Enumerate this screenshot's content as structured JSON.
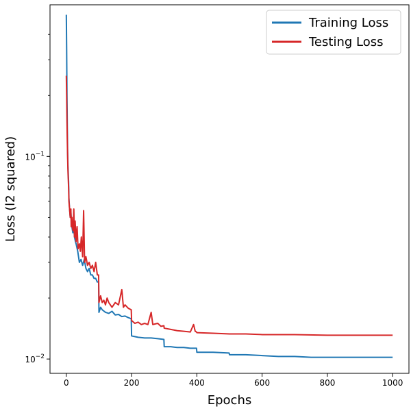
{
  "chart_data": {
    "type": "line",
    "xlabel": "Epochs",
    "ylabel": "Loss (l2 squared)",
    "yscale": "log",
    "xlim": [
      -50,
      1050
    ],
    "ylim": [
      0.0085,
      0.56
    ],
    "x_ticks": [
      0,
      200,
      400,
      600,
      800,
      1000
    ],
    "y_major_ticks": [
      {
        "value": 0.01,
        "label_base": "10",
        "label_exp": "−2"
      },
      {
        "value": 0.1,
        "label_base": "10",
        "label_exp": "−1"
      }
    ],
    "y_minor_ticks": [
      0.02,
      0.03,
      0.04,
      0.05,
      0.06,
      0.07,
      0.08,
      0.09,
      0.2,
      0.3,
      0.4
    ],
    "grid": false,
    "legend_position": "upper-right",
    "series": [
      {
        "name": "Training Loss",
        "color": "#1f77b4",
        "points": [
          [
            0,
            0.5
          ],
          [
            1,
            0.34
          ],
          [
            2,
            0.2
          ],
          [
            3,
            0.14
          ],
          [
            4,
            0.105
          ],
          [
            5,
            0.09
          ],
          [
            7,
            0.075
          ],
          [
            8,
            0.062
          ],
          [
            10,
            0.055
          ],
          [
            12,
            0.05
          ],
          [
            14,
            0.053
          ],
          [
            16,
            0.047
          ],
          [
            18,
            0.044
          ],
          [
            20,
            0.042
          ],
          [
            22,
            0.046
          ],
          [
            25,
            0.04
          ],
          [
            28,
            0.038
          ],
          [
            30,
            0.037
          ],
          [
            35,
            0.034
          ],
          [
            40,
            0.03
          ],
          [
            45,
            0.031
          ],
          [
            50,
            0.029
          ],
          [
            55,
            0.031
          ],
          [
            60,
            0.028
          ],
          [
            65,
            0.027
          ],
          [
            70,
            0.028
          ],
          [
            75,
            0.026
          ],
          [
            80,
            0.026
          ],
          [
            85,
            0.025
          ],
          [
            90,
            0.025
          ],
          [
            95,
            0.024
          ],
          [
            99,
            0.024
          ],
          [
            100,
            0.017
          ],
          [
            105,
            0.018
          ],
          [
            110,
            0.0175
          ],
          [
            120,
            0.017
          ],
          [
            130,
            0.0168
          ],
          [
            140,
            0.0172
          ],
          [
            150,
            0.0165
          ],
          [
            160,
            0.0166
          ],
          [
            170,
            0.0162
          ],
          [
            180,
            0.0163
          ],
          [
            190,
            0.016
          ],
          [
            199,
            0.0158
          ],
          [
            200,
            0.013
          ],
          [
            210,
            0.0129
          ],
          [
            220,
            0.0128
          ],
          [
            240,
            0.0127
          ],
          [
            260,
            0.0127
          ],
          [
            280,
            0.0126
          ],
          [
            299,
            0.0125
          ],
          [
            300,
            0.0115
          ],
          [
            320,
            0.0115
          ],
          [
            340,
            0.0114
          ],
          [
            360,
            0.0114
          ],
          [
            380,
            0.0113
          ],
          [
            399,
            0.0113
          ],
          [
            400,
            0.0108
          ],
          [
            450,
            0.0108
          ],
          [
            499,
            0.0107
          ],
          [
            500,
            0.0105
          ],
          [
            550,
            0.0105
          ],
          [
            600,
            0.0104
          ],
          [
            650,
            0.0103
          ],
          [
            700,
            0.0103
          ],
          [
            750,
            0.0102
          ],
          [
            800,
            0.0102
          ],
          [
            850,
            0.0102
          ],
          [
            900,
            0.0102
          ],
          [
            950,
            0.0102
          ],
          [
            1000,
            0.0102
          ]
        ]
      },
      {
        "name": "Testing Loss",
        "color": "#d62728",
        "points": [
          [
            0,
            0.25
          ],
          [
            1,
            0.2
          ],
          [
            2,
            0.15
          ],
          [
            3,
            0.12
          ],
          [
            4,
            0.1
          ],
          [
            5,
            0.085
          ],
          [
            7,
            0.07
          ],
          [
            8,
            0.06
          ],
          [
            10,
            0.055
          ],
          [
            12,
            0.05
          ],
          [
            14,
            0.055
          ],
          [
            15,
            0.045
          ],
          [
            17,
            0.05
          ],
          [
            19,
            0.044
          ],
          [
            21,
            0.043
          ],
          [
            23,
            0.055
          ],
          [
            25,
            0.04
          ],
          [
            27,
            0.048
          ],
          [
            30,
            0.038
          ],
          [
            33,
            0.045
          ],
          [
            36,
            0.035
          ],
          [
            40,
            0.037
          ],
          [
            43,
            0.034
          ],
          [
            46,
            0.04
          ],
          [
            50,
            0.032
          ],
          [
            53,
            0.054
          ],
          [
            56,
            0.03
          ],
          [
            60,
            0.032
          ],
          [
            65,
            0.029
          ],
          [
            70,
            0.03
          ],
          [
            75,
            0.028
          ],
          [
            80,
            0.029
          ],
          [
            85,
            0.027
          ],
          [
            90,
            0.03
          ],
          [
            95,
            0.026
          ],
          [
            99,
            0.026
          ],
          [
            100,
            0.019
          ],
          [
            105,
            0.0205
          ],
          [
            110,
            0.019
          ],
          [
            115,
            0.0195
          ],
          [
            120,
            0.0185
          ],
          [
            125,
            0.02
          ],
          [
            130,
            0.019
          ],
          [
            140,
            0.018
          ],
          [
            150,
            0.019
          ],
          [
            160,
            0.0185
          ],
          [
            170,
            0.022
          ],
          [
            175,
            0.018
          ],
          [
            180,
            0.0185
          ],
          [
            190,
            0.0178
          ],
          [
            199,
            0.0175
          ],
          [
            200,
            0.0155
          ],
          [
            210,
            0.015
          ],
          [
            220,
            0.0152
          ],
          [
            230,
            0.0148
          ],
          [
            240,
            0.015
          ],
          [
            250,
            0.0148
          ],
          [
            260,
            0.017
          ],
          [
            265,
            0.0148
          ],
          [
            280,
            0.015
          ],
          [
            290,
            0.0145
          ],
          [
            299,
            0.0146
          ],
          [
            300,
            0.0142
          ],
          [
            320,
            0.014
          ],
          [
            340,
            0.0138
          ],
          [
            360,
            0.0137
          ],
          [
            380,
            0.0136
          ],
          [
            390,
            0.0148
          ],
          [
            395,
            0.0137
          ],
          [
            399,
            0.0136
          ],
          [
            400,
            0.0135
          ],
          [
            450,
            0.0134
          ],
          [
            500,
            0.0133
          ],
          [
            550,
            0.0133
          ],
          [
            600,
            0.0132
          ],
          [
            700,
            0.0132
          ],
          [
            800,
            0.0131
          ],
          [
            900,
            0.0131
          ],
          [
            1000,
            0.0131
          ]
        ]
      }
    ]
  }
}
